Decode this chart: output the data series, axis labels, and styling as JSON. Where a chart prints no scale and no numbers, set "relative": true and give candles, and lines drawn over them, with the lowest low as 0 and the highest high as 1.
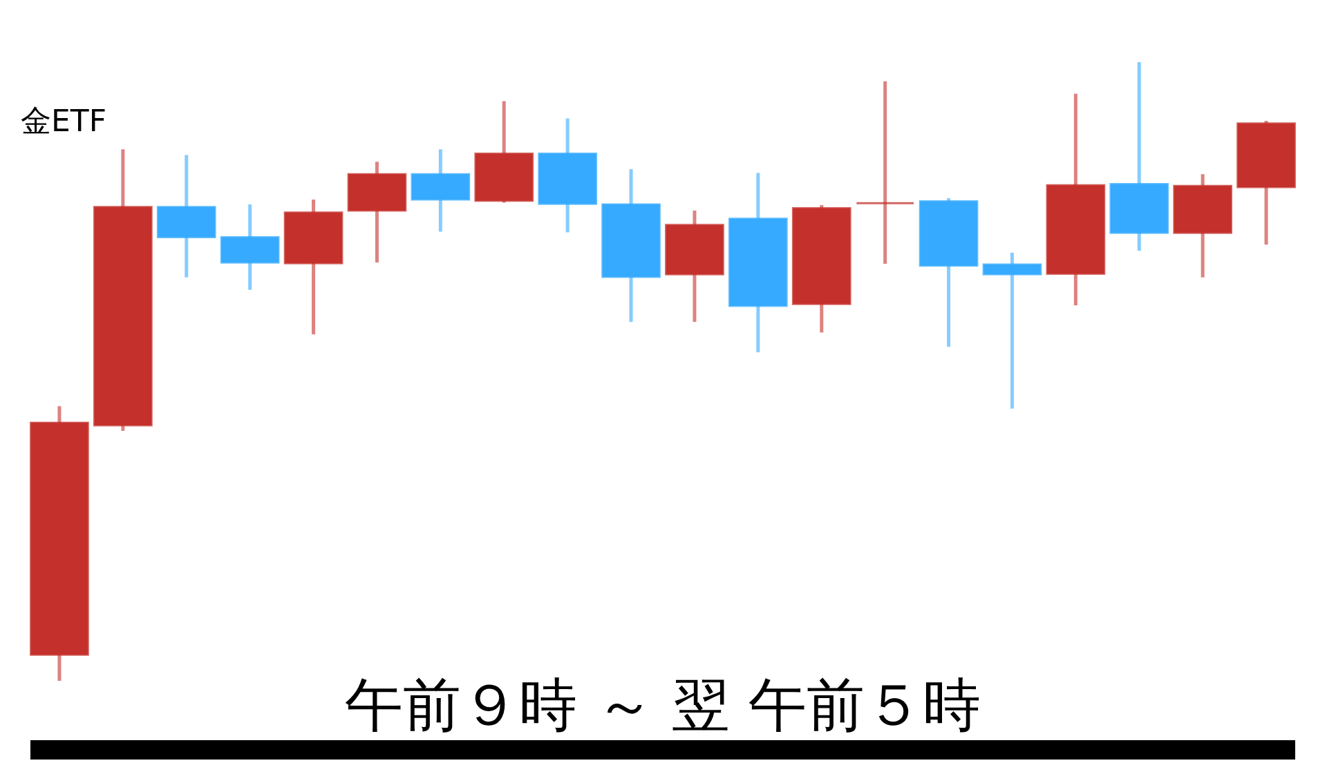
{
  "chart_data": {
    "type": "candlestick",
    "title": "金ETF",
    "xlabel": "午前９時 ～ 翌 午前５時",
    "relative": true,
    "categories": [
      null,
      null,
      null,
      null,
      null,
      null,
      null,
      null,
      null,
      null,
      null,
      null,
      null,
      null,
      null,
      null,
      null,
      null,
      null,
      null
    ],
    "ohlc": [
      [
        0.042,
        0.444,
        0,
        0.417
      ],
      [
        0.413,
        0.859,
        0.404,
        0.766
      ],
      [
        0.766,
        0.85,
        0.652,
        0.717
      ],
      [
        0.717,
        0.77,
        0.632,
        0.676
      ],
      [
        0.675,
        0.778,
        0.56,
        0.757
      ],
      [
        0.76,
        0.839,
        0.676,
        0.819
      ],
      [
        0.819,
        0.859,
        0.726,
        0.778
      ],
      [
        0.776,
        0.937,
        0.773,
        0.852
      ],
      [
        0.852,
        0.909,
        0.725,
        0.771
      ],
      [
        0.77,
        0.827,
        0.58,
        0.653
      ],
      [
        0.657,
        0.76,
        0.58,
        0.737
      ],
      [
        0.747,
        0.821,
        0.531,
        0.606
      ],
      [
        0.609,
        0.769,
        0.563,
        0.764
      ],
      [
        0.772,
        0.969,
        0.674,
        0.772
      ],
      [
        0.775,
        0.78,
        0.54,
        0.671
      ],
      [
        0.673,
        0.692,
        0.44,
        0.657
      ],
      [
        0.658,
        0.949,
        0.607,
        0.801
      ],
      [
        0.803,
        1,
        0.695,
        0.724
      ],
      [
        0.724,
        0.819,
        0.652,
        0.8
      ],
      [
        0.798,
        0.905,
        0.705,
        0.901
      ]
    ],
    "colors": [
      "#c4302b",
      "#c4302b",
      "#36aaff",
      "#36aaff",
      "#c4302b",
      "#c4302b",
      "#36aaff",
      "#c4302b",
      "#36aaff",
      "#36aaff",
      "#c4302b",
      "#36aaff",
      "#c4302b",
      "#c4302b",
      "#36aaff",
      "#36aaff",
      "#c4302b",
      "#36aaff",
      "#c4302b",
      "#c4302b"
    ]
  }
}
